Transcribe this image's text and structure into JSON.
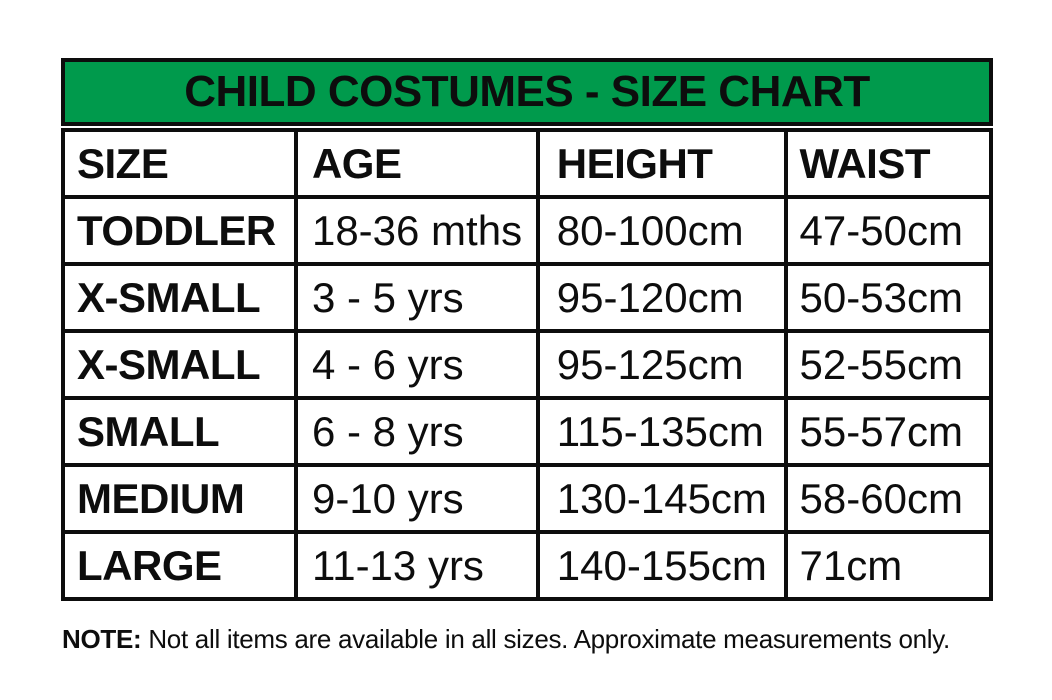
{
  "chart_data": {
    "type": "table",
    "title": "CHILD COSTUMES - SIZE CHART",
    "columns": [
      "SIZE",
      "AGE",
      "HEIGHT",
      "WAIST"
    ],
    "rows": [
      [
        "TODDLER",
        "18-36 mths",
        "80-100cm",
        "47-50cm"
      ],
      [
        "X-SMALL",
        "3 - 5 yrs",
        "95-120cm",
        "50-53cm"
      ],
      [
        "X-SMALL",
        "4 - 6 yrs",
        "95-125cm",
        "52-55cm"
      ],
      [
        "SMALL",
        "6 - 8 yrs",
        "115-135cm",
        "55-57cm"
      ],
      [
        "MEDIUM",
        "9-10 yrs",
        "130-145cm",
        "58-60cm"
      ],
      [
        "LARGE",
        "11-13 yrs",
        "140-155cm",
        "71cm"
      ]
    ],
    "layout": {
      "header_bg": "#009A4C",
      "border_color": "#0d0d0d",
      "cell_bg": "#ffffff"
    }
  },
  "note": {
    "label": "NOTE:",
    "text": "Not all items are available in all sizes. Approximate measurements only."
  }
}
